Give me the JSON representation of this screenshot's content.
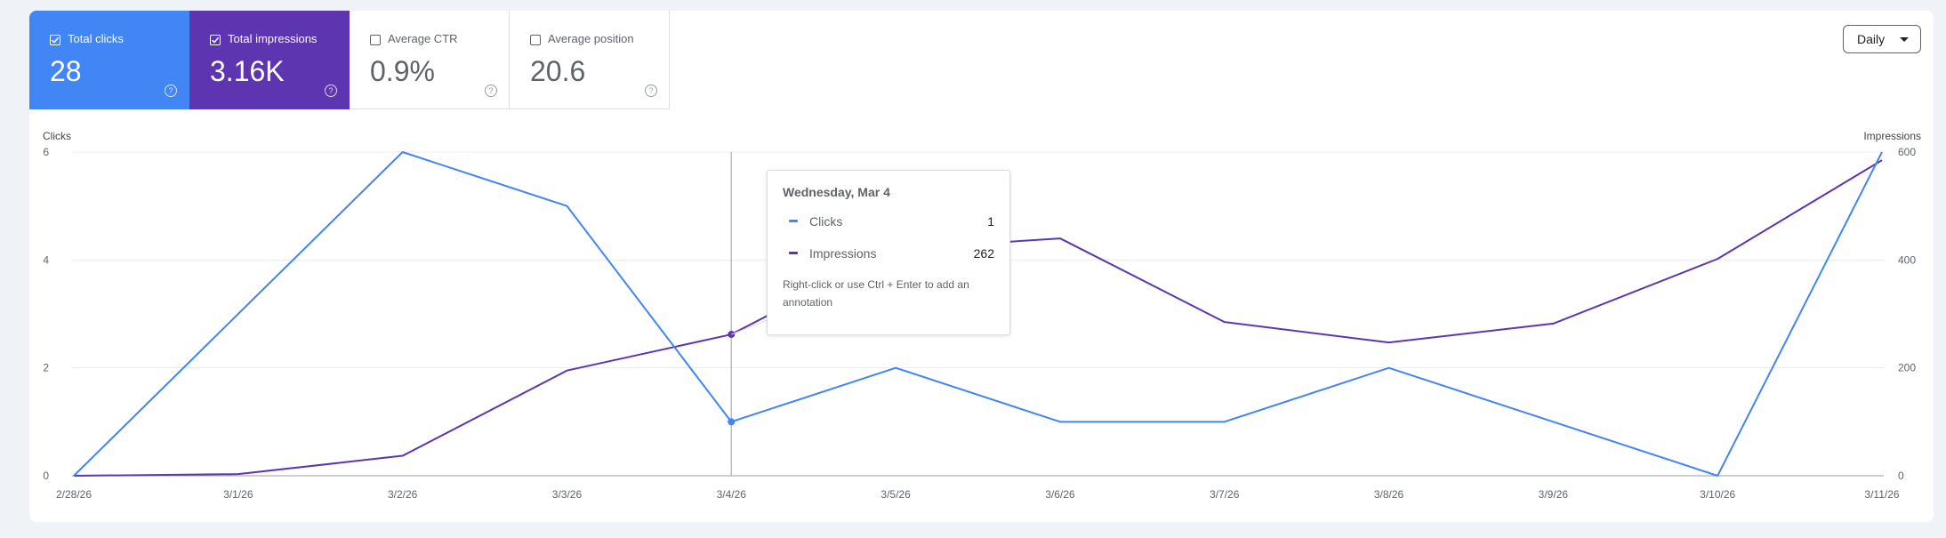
{
  "metrics": [
    {
      "label": "Total clicks",
      "value": "28",
      "checked": true
    },
    {
      "label": "Total impressions",
      "value": "3.16K",
      "checked": true
    },
    {
      "label": "Average CTR",
      "value": "0.9%",
      "checked": false
    },
    {
      "label": "Average position",
      "value": "20.6",
      "checked": false
    }
  ],
  "period_select": {
    "label": "Daily"
  },
  "tooltip": {
    "title": "Wednesday, Mar 4",
    "rows": [
      {
        "name": "Clicks",
        "value": "1"
      },
      {
        "name": "Impressions",
        "value": "262"
      }
    ],
    "note": "Right-click or use Ctrl + Enter to add an annotation"
  },
  "colors": {
    "clicks": "#4285f4",
    "impressions": "#5e35b1"
  },
  "chart_data": {
    "type": "line",
    "categories": [
      "2/28/26",
      "3/1/26",
      "3/2/26",
      "3/3/26",
      "3/4/26",
      "3/5/26",
      "3/6/26",
      "3/7/26",
      "3/8/26",
      "3/9/26",
      "3/10/26",
      "3/11/26"
    ],
    "y_left": {
      "label": "Clicks",
      "ticks": [
        "0",
        "2",
        "4",
        "6"
      ],
      "range": [
        0,
        6
      ]
    },
    "y_right": {
      "label": "Impressions",
      "ticks": [
        "0",
        "200",
        "400",
        "600"
      ],
      "range": [
        0,
        600
      ]
    },
    "series": [
      {
        "name": "Clicks",
        "axis": "left",
        "values": [
          0,
          3,
          6,
          5,
          1,
          2,
          1,
          1,
          2,
          1,
          0,
          6
        ]
      },
      {
        "name": "Impressions",
        "axis": "right",
        "values": [
          0,
          3,
          37,
          195,
          262,
          420,
          440,
          285,
          247,
          282,
          402,
          585
        ]
      }
    ],
    "highlight_index": 4,
    "grid": true
  }
}
